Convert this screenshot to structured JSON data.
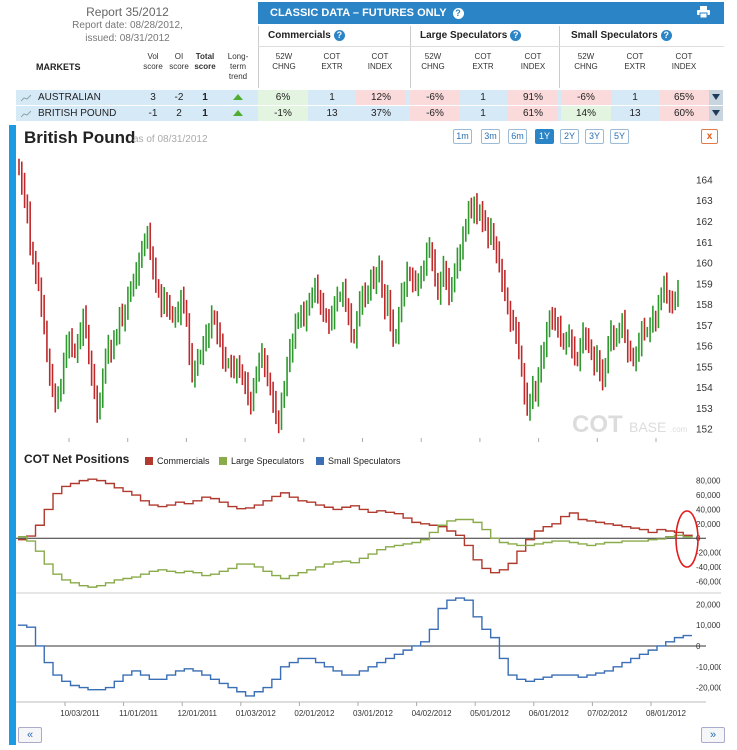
{
  "report": {
    "title": "Report 35/2012",
    "date_line": "Report date: 08/28/2012,",
    "issued_line": "issued: 08/31/2012"
  },
  "panel": {
    "title": "CLASSIC DATA – FUTURES ONLY",
    "help": "?"
  },
  "groups": {
    "commercials": "Commercials",
    "large_spec": "Large Speculators",
    "small_spec": "Small Speculators"
  },
  "headers": {
    "markets": "MARKETS",
    "vol": [
      "Vol",
      "score"
    ],
    "oi": [
      "OI",
      "score"
    ],
    "total": [
      "Total",
      "score"
    ],
    "trend": [
      "Long-",
      "term",
      "trend"
    ],
    "chng": [
      "52W",
      "CHNG"
    ],
    "extr": [
      "COT",
      "EXTR"
    ],
    "index": [
      "COT",
      "INDEX"
    ]
  },
  "rows": [
    {
      "name": "AUSTRALIAN DOLLAR",
      "vol": "3",
      "oi": "-2",
      "total": "1",
      "comm": [
        "6%",
        "1",
        "12%"
      ],
      "large": [
        "-6%",
        "1",
        "91%"
      ],
      "small": [
        "-6%",
        "1",
        "65%"
      ]
    },
    {
      "name": "BRITISH POUND",
      "vol": "-1",
      "oi": "2",
      "total": "1",
      "comm": [
        "-1%",
        "13",
        "37%"
      ],
      "large": [
        "-6%",
        "1",
        "61%"
      ],
      "small": [
        "14%",
        "13",
        "60%"
      ]
    }
  ],
  "chart_header": {
    "title": "British Pound",
    "asof": "as of 08/31/2012"
  },
  "ranges": [
    "1m",
    "3m",
    "6m",
    "1Y",
    "2Y",
    "3Y",
    "5Y"
  ],
  "active_range": "1Y",
  "close_label": "x",
  "watermark": {
    "cot": "COT",
    "base": "BASE",
    "dotcom": ".com"
  },
  "cot_title": "COT Net Positions",
  "nav": {
    "prev": "«",
    "next": "»"
  },
  "colors": {
    "accent": "#2a84c6",
    "commercials": "#b03a2e",
    "large_spec": "#8aab4a",
    "small_spec": "#3a6eb5",
    "up_bar": "#2e9a2e",
    "down_bar": "#c0282a"
  },
  "chart_data": [
    {
      "type": "ohlc",
      "title": "British Pound",
      "y_ticks": [
        152,
        153,
        154,
        155,
        156,
        157,
        158,
        159,
        160,
        161,
        162,
        163,
        164
      ],
      "ylim": [
        151.6,
        164.6
      ],
      "x_ticks": [
        "10/03/2011",
        "11/01/2011",
        "12/01/2011",
        "01/03/2012",
        "02/01/2012",
        "03/01/2012",
        "04/02/2012",
        "05/01/2012",
        "06/01/2012",
        "07/02/2012",
        "08/01/2012"
      ],
      "closes": [
        164.5,
        163.8,
        163,
        162.5,
        160.8,
        160.2,
        159.5,
        159,
        158,
        157,
        155.5,
        154.6,
        153.9,
        153.4,
        153.6,
        154.2,
        155.3,
        156,
        156.4,
        155.9,
        155.7,
        156.2,
        156.6,
        157.5,
        156.8,
        155.4,
        154.6,
        153.8,
        152.9,
        153.3,
        154.7,
        155.5,
        156,
        155.8,
        156.3,
        156.6,
        157.5,
        157.3,
        157.7,
        158.4,
        158.9,
        159.1,
        159.5,
        160.2,
        160.6,
        161.2,
        161.4,
        160.5,
        159.8,
        159,
        158.6,
        157.9,
        158.3,
        158,
        157.7,
        157.4,
        157.5,
        157.6,
        158.4,
        158,
        157.2,
        155.6,
        154.6,
        155,
        155.4,
        155.6,
        156.1,
        156.5,
        156.8,
        157.5,
        157.3,
        156.6,
        156.3,
        155.5,
        155.2,
        155.2,
        155,
        154.8,
        155.1,
        154.9,
        154.4,
        154.2,
        153.5,
        153.3,
        154,
        154.8,
        155.3,
        155.6,
        155.1,
        154.5,
        153.9,
        153.3,
        152.6,
        152.4,
        153.3,
        154.1,
        155.1,
        155.8,
        156.3,
        157.1,
        157.4,
        157.6,
        157.3,
        157.9,
        158.1,
        158.6,
        158.9,
        158.4,
        158.1,
        157.6,
        157.4,
        157.1,
        157.4,
        158.1,
        158.4,
        158.4,
        158.7,
        158,
        157.6,
        156.6,
        156.4,
        157.3,
        158.1,
        158.6,
        158.3,
        158.7,
        159.3,
        159.1,
        159.5,
        159.9,
        158.6,
        157.8,
        158.4,
        157.3,
        156.4,
        156.6,
        157.5,
        158.5,
        158.8,
        159.6,
        159.4,
        159.1,
        159,
        159.2,
        159.4,
        159.9,
        160.6,
        160.7,
        160.2,
        159.3,
        158.5,
        159.2,
        159.8,
        159.3,
        158.4,
        159.1,
        159.6,
        160.2,
        160.6,
        161.3,
        161.9,
        162.6,
        162.5,
        162.9,
        162.3,
        162.6,
        162,
        161.9,
        161.3,
        161.7,
        160.9,
        160.5,
        159.9,
        159.2,
        158.6,
        157.8,
        157.2,
        157.1,
        156.7,
        155.8,
        154.8,
        153.7,
        153,
        153.4,
        154.1,
        153.6,
        154.6,
        155.5,
        155.9,
        156.7,
        157.5,
        157.3,
        157.1,
        157,
        156.4,
        156.1,
        156.3,
        156.5,
        156,
        155.5,
        155.3,
        156,
        156.6,
        156.4,
        156.1,
        155.6,
        155.1,
        155.5,
        154.9,
        154.3,
        155.2,
        156.1,
        156.7,
        156.4,
        156.4,
        156.9,
        157.2,
        156.5,
        155.8,
        155.7,
        155.3,
        155.6,
        156.1,
        156.9,
        156.7,
        156.7,
        157,
        157.4,
        157.3,
        158,
        158.6,
        159,
        158.4,
        158.2,
        158,
        158.4,
        158.8
      ]
    },
    {
      "type": "line",
      "title": "COT Net Positions",
      "x_ticks": [
        "10/03/2011",
        "11/01/2011",
        "12/01/2011",
        "01/03/2012",
        "02/01/2012",
        "03/01/2012",
        "04/02/2012",
        "05/01/2012",
        "06/01/2012",
        "07/02/2012",
        "08/01/2012"
      ],
      "panels": [
        {
          "y_ticks": [
            80000,
            60000,
            40000,
            20000,
            0,
            -20000,
            -40000,
            -60000
          ],
          "y_labels": [
            "80,000",
            "60,000",
            "40,000",
            "20,000",
            "0",
            "-20,000",
            "-40,000",
            "-60,000"
          ],
          "ylim": [
            -72000,
            92000
          ],
          "series": [
            {
              "name": "Commercials",
              "color": "#b03a2e",
              "values": [
                -2000,
                3000,
                18000,
                40000,
                62000,
                72000,
                76000,
                80000,
                82000,
                80000,
                76000,
                70000,
                65000,
                60000,
                52000,
                46000,
                44000,
                46000,
                50000,
                48000,
                52000,
                57000,
                55000,
                50000,
                44000,
                41000,
                42000,
                46000,
                52000,
                58000,
                63000,
                57000,
                52000,
                50000,
                46000,
                43000,
                40000,
                43000,
                45000,
                40000,
                36000,
                38000,
                36000,
                34000,
                28000,
                22000,
                20000,
                18000,
                16000,
                10000,
                4000,
                -10000,
                -30000,
                -42000,
                -48000,
                -44000,
                -35000,
                -18000,
                -2000,
                10000,
                16000,
                20000,
                30000,
                35000,
                26000,
                24000,
                22000,
                20000,
                18000,
                16000,
                14000,
                12000,
                8000,
                12000,
                10000,
                8000,
                4000,
                2000
              ]
            },
            {
              "name": "Large Speculators",
              "color": "#8aab4a",
              "values": [
                2000,
                -4000,
                -18000,
                -36000,
                -50000,
                -58000,
                -62000,
                -66000,
                -68000,
                -66000,
                -62000,
                -58000,
                -56000,
                -54000,
                -50000,
                -46000,
                -44000,
                -46000,
                -48000,
                -46000,
                -48000,
                -52000,
                -50000,
                -46000,
                -42000,
                -36000,
                -36000,
                -40000,
                -46000,
                -52000,
                -56000,
                -52000,
                -48000,
                -44000,
                -40000,
                -36000,
                -33000,
                -32000,
                -34000,
                -28000,
                -22000,
                -16000,
                -12000,
                -10000,
                -8000,
                -6000,
                -2000,
                8000,
                18000,
                24000,
                26000,
                26000,
                22000,
                12000,
                0,
                -6000,
                -8000,
                -10000,
                -10000,
                -8000,
                -6000,
                -4000,
                -4000,
                -6000,
                -8000,
                -10000,
                -8000,
                -6000,
                -6000,
                -4000,
                -4000,
                -4000,
                -2000,
                -1000,
                2000,
                4000,
                2000,
                0
              ]
            }
          ]
        },
        {
          "y_ticks": [
            20000,
            10000,
            0,
            -10000,
            -20000
          ],
          "y_labels": [
            "20,000",
            "10,000",
            "0",
            "-10,000",
            "-20,000"
          ],
          "ylim": [
            -25000,
            24000
          ],
          "series": [
            {
              "name": "Small Speculators",
              "color": "#3a6eb5",
              "values": [
                10000,
                9000,
                0,
                -8000,
                -14000,
                -17000,
                -19000,
                -20000,
                -21000,
                -21000,
                -20000,
                -17000,
                -14000,
                -12000,
                -14000,
                -16000,
                -16000,
                -14000,
                -12000,
                -11000,
                -12000,
                -14000,
                -16000,
                -18000,
                -20000,
                -22000,
                -24000,
                -22000,
                -20000,
                -16000,
                -10000,
                -8000,
                -6000,
                -6000,
                -8000,
                -10000,
                -12000,
                -14000,
                -14000,
                -12000,
                -10000,
                -8000,
                -6000,
                -4000,
                -2000,
                0,
                2000,
                8000,
                18000,
                22000,
                23000,
                22000,
                14000,
                8000,
                4000,
                -6000,
                -14000,
                -16000,
                -17000,
                -16000,
                -15000,
                -14000,
                -14000,
                -14000,
                -15000,
                -14000,
                -13000,
                -12000,
                -10000,
                -8000,
                -6000,
                -4000,
                -2000,
                0,
                2000,
                4000,
                5000,
                5000
              ]
            }
          ]
        }
      ]
    }
  ]
}
